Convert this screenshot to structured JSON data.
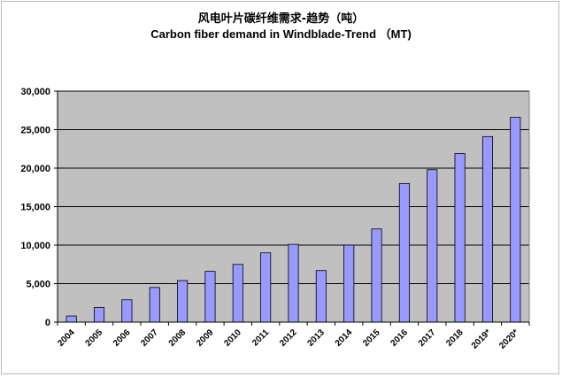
{
  "chart_data": {
    "type": "bar",
    "title": "风电叶片碳纤维需求-趋势（吨）",
    "subtitle": "Carbon fiber demand in Windblade-Trend （MT)",
    "xlabel": "",
    "ylabel": "",
    "categories": [
      "2004",
      "2005",
      "2006",
      "2007",
      "2008",
      "2009",
      "2010",
      "2011",
      "2012",
      "2013",
      "2014",
      "2015",
      "2016",
      "2017",
      "2018",
      "2019*",
      "2020*"
    ],
    "values": [
      800,
      1900,
      2900,
      4500,
      5400,
      6600,
      7500,
      9000,
      10100,
      6700,
      10000,
      12100,
      18000,
      19800,
      21900,
      24100,
      26600
    ],
    "ylim": [
      0,
      30000
    ],
    "yticks": [
      0,
      5000,
      10000,
      15000,
      20000,
      25000,
      30000
    ],
    "ytick_labels": [
      "0",
      "5,000",
      "10,000",
      "15,000",
      "20,000",
      "25,000",
      "30,000"
    ],
    "grid": true,
    "legend": "none",
    "colors": {
      "bar_fill": "#9999ff",
      "bar_stroke": "#000000",
      "plot_background": "#c0c0c0",
      "gridline": "#000000"
    }
  }
}
